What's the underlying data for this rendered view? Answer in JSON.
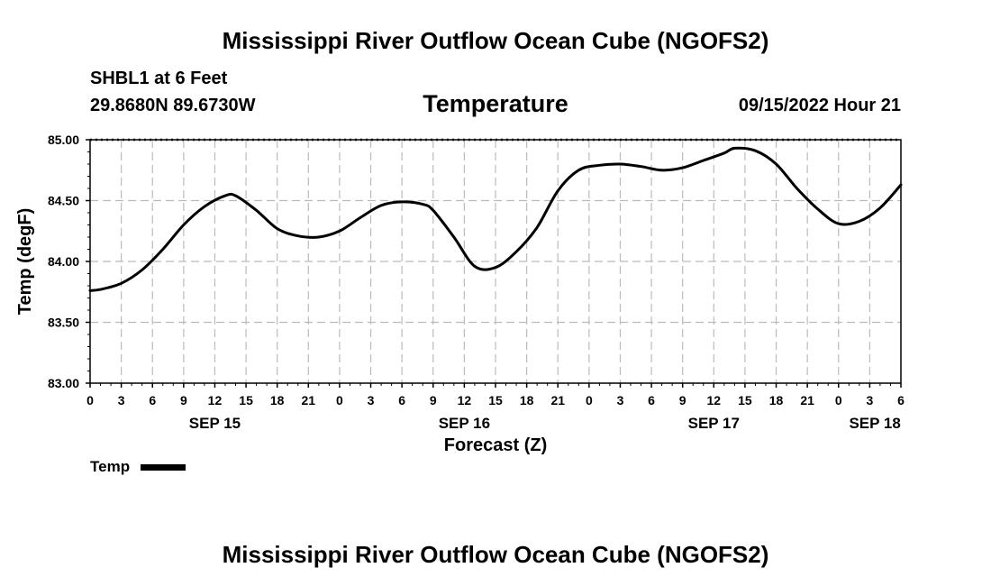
{
  "header": {
    "title_top": "Mississippi River Outflow Ocean Cube (NGOFS2)",
    "title_bottom": "Mississippi River Outflow Ocean Cube (NGOFS2)",
    "station": "SHBL1 at 6 Feet",
    "coords": "29.8680N  89.6730W",
    "datetime": "09/15/2022 Hour 21"
  },
  "legend": {
    "label": "Temp"
  },
  "chart_data": {
    "type": "line",
    "title": "Temperature",
    "xlabel": "Forecast (Z)",
    "ylabel": "Temp (degF)",
    "ylim": [
      83.0,
      85.0
    ],
    "xlim": [
      0,
      78
    ],
    "y_ticks": [
      "83.00",
      "83.50",
      "84.00",
      "84.50",
      "85.00"
    ],
    "x_tick_labels": [
      "0",
      "3",
      "6",
      "9",
      "12",
      "15",
      "18",
      "21",
      "0",
      "3",
      "6",
      "9",
      "12",
      "15",
      "18",
      "21",
      "0",
      "3",
      "6",
      "9",
      "12",
      "15",
      "18",
      "21",
      "0",
      "3",
      "6"
    ],
    "date_labels": [
      {
        "text": "SEP 15",
        "hour": 12
      },
      {
        "text": "SEP 16",
        "hour": 36
      },
      {
        "text": "SEP 17",
        "hour": 60
      },
      {
        "text": "SEP 18",
        "hour": 75.5
      }
    ],
    "grid": true,
    "series": [
      {
        "name": "Temp",
        "x": [
          0,
          1,
          3,
          5,
          7,
          9,
          11,
          13,
          14,
          16,
          18,
          20,
          22,
          24,
          26,
          28,
          30,
          32,
          33,
          35,
          37,
          39,
          41,
          43,
          45,
          47,
          49,
          51,
          53,
          55,
          57,
          59,
          61,
          62,
          64,
          66,
          68,
          70,
          72,
          74,
          76,
          78
        ],
        "values": [
          83.76,
          83.77,
          83.82,
          83.93,
          84.1,
          84.3,
          84.45,
          84.54,
          84.54,
          84.42,
          84.27,
          84.21,
          84.2,
          84.25,
          84.36,
          84.46,
          84.49,
          84.47,
          84.42,
          84.2,
          83.96,
          83.95,
          84.08,
          84.28,
          84.58,
          84.75,
          84.79,
          84.8,
          84.78,
          84.75,
          84.77,
          84.83,
          84.89,
          84.93,
          84.91,
          84.8,
          84.6,
          84.43,
          84.31,
          84.33,
          84.44,
          84.63
        ]
      }
    ]
  }
}
